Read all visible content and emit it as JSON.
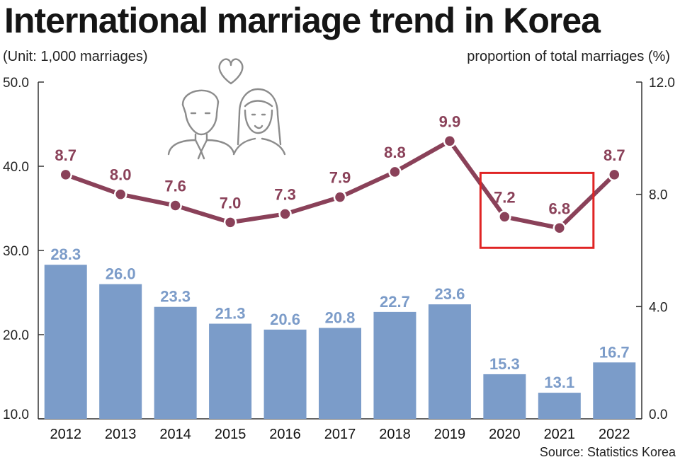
{
  "chart_data": {
    "type": "bar+line",
    "title": "International marriage trend in Korea",
    "left_axis_label": "(Unit: 1,000 marriages)",
    "right_axis_label": "proportion of total marriages (%)",
    "source": "Source: Statistics Korea",
    "categories": [
      "2012",
      "2013",
      "2014",
      "2015",
      "2016",
      "2017",
      "2018",
      "2019",
      "2020",
      "2021",
      "2022"
    ],
    "bar_series": {
      "values": [
        28.3,
        26.0,
        23.3,
        21.3,
        20.6,
        20.8,
        22.7,
        23.6,
        15.3,
        13.1,
        16.7
      ],
      "labels": [
        "28.3",
        "26.0",
        "23.3",
        "21.3",
        "20.6",
        "20.8",
        "22.7",
        "23.6",
        "15.3",
        "13.1",
        "16.7"
      ],
      "color": "#7b9cc9"
    },
    "line_series": {
      "values": [
        8.7,
        8.0,
        7.6,
        7.0,
        7.3,
        7.9,
        8.8,
        9.9,
        7.2,
        6.8,
        8.7
      ],
      "labels": [
        "8.7",
        "8.0",
        "7.6",
        "7.0",
        "7.3",
        "7.9",
        "8.8",
        "9.9",
        "7.2",
        "6.8",
        "8.7"
      ],
      "color": "#8a4159"
    },
    "left_axis": {
      "min": 10,
      "max": 50,
      "ticks": [
        "10.0",
        "20.0",
        "30.0",
        "40.0",
        "50.0"
      ]
    },
    "right_axis": {
      "min": 0,
      "max": 12,
      "ticks": [
        "0.0",
        "4.0",
        "8.0",
        "12.0"
      ]
    },
    "highlight": {
      "categories": [
        "2020",
        "2021"
      ],
      "color": "#e02424"
    },
    "grid": false
  },
  "illustration": {
    "icon": "couple-with-heart-icon"
  }
}
